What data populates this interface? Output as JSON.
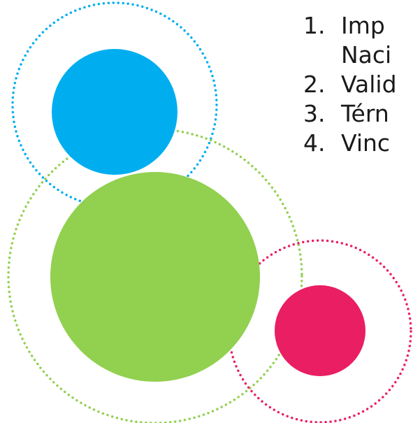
{
  "items": [
    {
      "number": "1.",
      "text": "Imp\nNaci"
    },
    {
      "number": "2.",
      "text": "Valid"
    },
    {
      "number": "3.",
      "text": "Térn"
    },
    {
      "number": "4.",
      "text": "Vinc"
    }
  ],
  "colors": {
    "blue": "#00aeef",
    "green": "#92d050",
    "pink": "#e91e63",
    "text": "#1a1a1a",
    "background": "#ffffff"
  }
}
